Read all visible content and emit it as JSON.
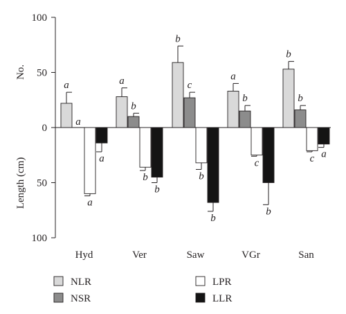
{
  "chart_data": {
    "type": "bar",
    "categories": [
      "Hyd",
      "Ver",
      "Saw",
      "VGr",
      "San"
    ],
    "upper_axis": {
      "label": "No.",
      "ylim": [
        0,
        100
      ],
      "ticks": [
        "0",
        "50",
        "100"
      ]
    },
    "lower_axis": {
      "label": "Length (cm)",
      "ylim": [
        0,
        100
      ],
      "ticks": [
        "50",
        "100"
      ]
    },
    "series": [
      {
        "name": "NLR",
        "direction": "up",
        "color": "#d9d9d9",
        "values": [
          22,
          28,
          59,
          33,
          53
        ],
        "errors": [
          10,
          8,
          15,
          7,
          7
        ],
        "letters": [
          "a",
          "a",
          "b",
          "a",
          "b"
        ]
      },
      {
        "name": "NSR",
        "direction": "up",
        "color": "#8c8c8c",
        "values": [
          0,
          10,
          27,
          15,
          16
        ],
        "errors": [
          0,
          3,
          5,
          5,
          4
        ],
        "letters": [
          "a",
          "b",
          "c",
          "b",
          "b"
        ]
      },
      {
        "name": "LPR",
        "direction": "down",
        "color": "#ffffff",
        "values": [
          60,
          36,
          32,
          25,
          21
        ],
        "errors": [
          2,
          3,
          6,
          1,
          1
        ],
        "letters": [
          "a",
          "b",
          "b",
          "c",
          "c"
        ]
      },
      {
        "name": "LLR",
        "direction": "down",
        "color": "#141414",
        "values": [
          14,
          45,
          68,
          50,
          15
        ],
        "errors": [
          8,
          5,
          8,
          20,
          3
        ],
        "letters": [
          "a",
          "b",
          "b",
          "b",
          "a"
        ]
      }
    ],
    "legend": {
      "placement": "bottom",
      "items": [
        {
          "name": "NLR",
          "color": "#d9d9d9"
        },
        {
          "name": "LPR",
          "color": "#ffffff"
        },
        {
          "name": "NSR",
          "color": "#8c8c8c"
        },
        {
          "name": "LLR",
          "color": "#141414"
        }
      ]
    },
    "grid": false
  }
}
